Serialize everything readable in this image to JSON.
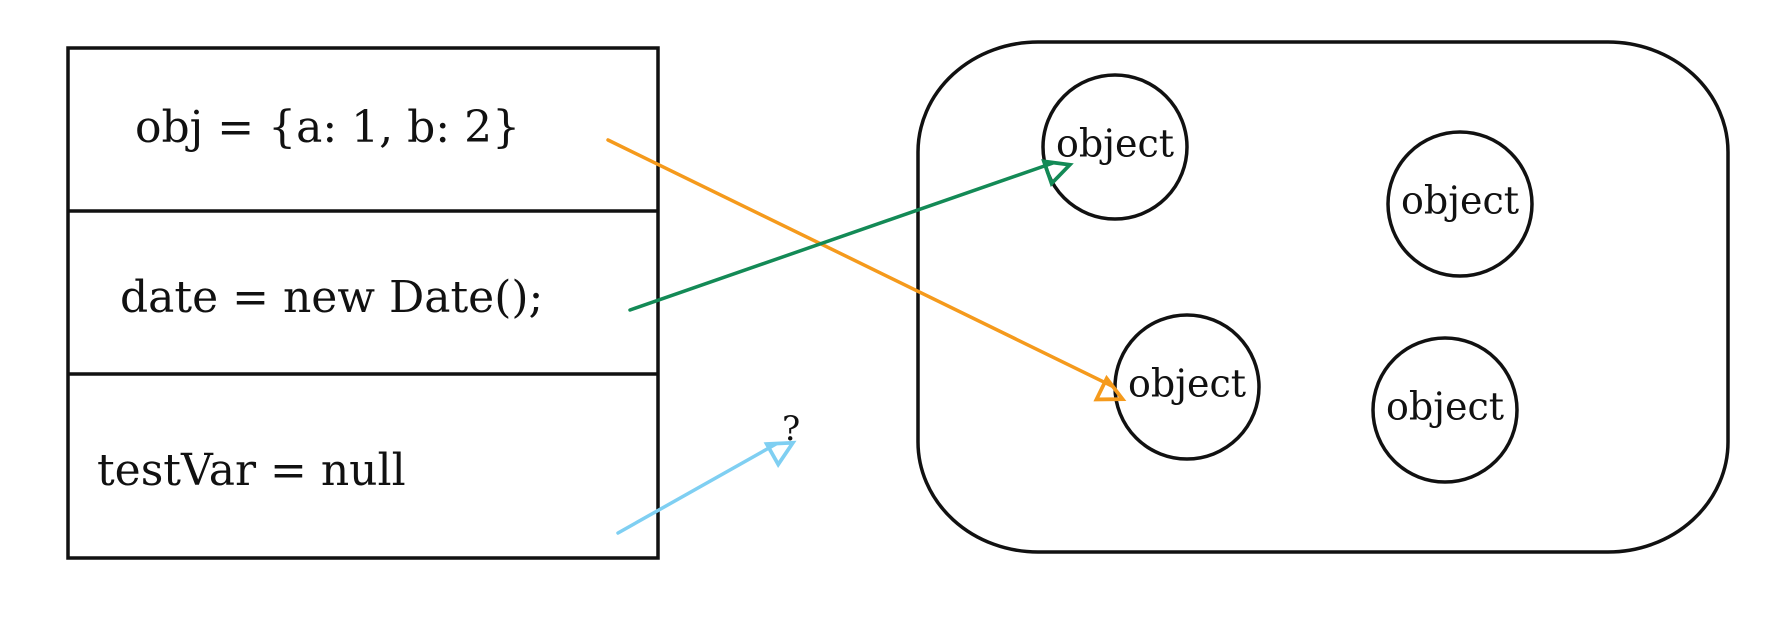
{
  "stack": {
    "rows": [
      {
        "label": "obj  =  {a: 1, b: 2}"
      },
      {
        "label": "date  =  new Date();"
      },
      {
        "label": "testVar  =   null"
      }
    ]
  },
  "heap": {
    "objects": [
      {
        "label": "object"
      },
      {
        "label": "object"
      },
      {
        "label": "object"
      },
      {
        "label": "object"
      }
    ]
  },
  "null_target": {
    "label": "?"
  },
  "colors": {
    "obj_arrow": "#f59a1c",
    "date_arrow": "#138a56",
    "null_arrow": "#7fcff2",
    "stroke": "#111111"
  }
}
